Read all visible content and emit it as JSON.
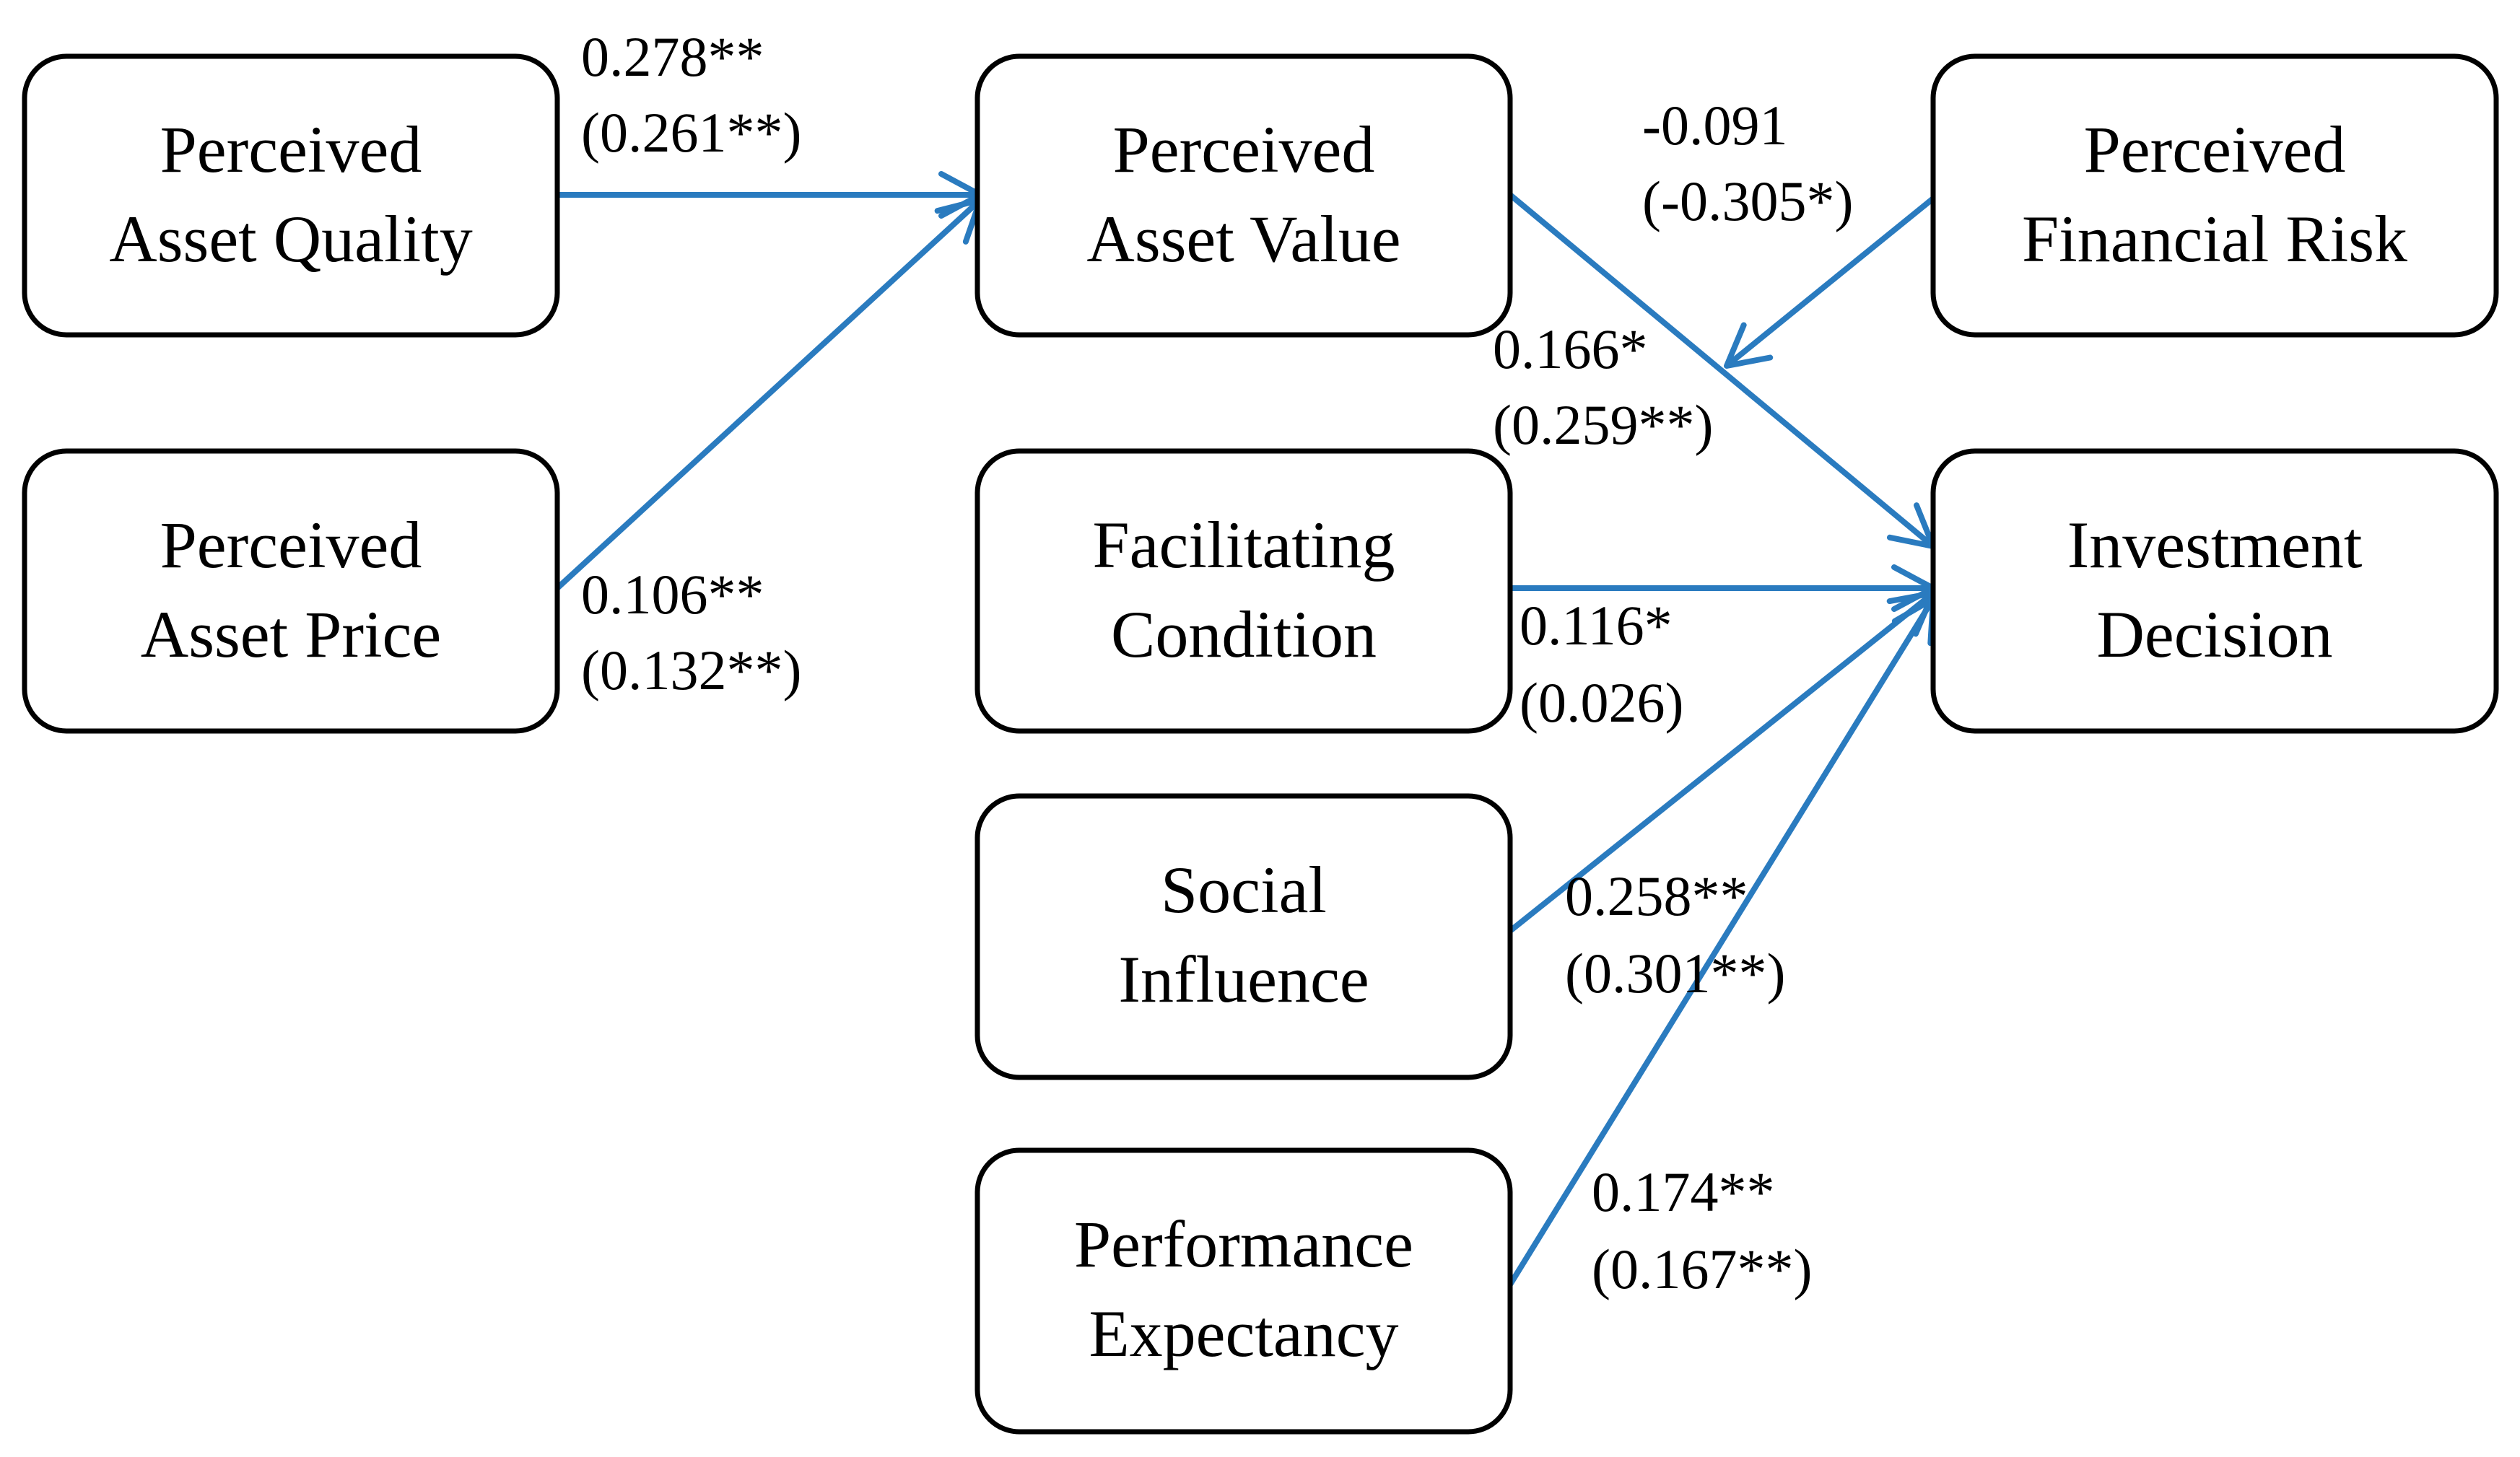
{
  "colors": {
    "arrow": "#2a7bbf",
    "box_border": "#000000",
    "text": "#000000",
    "background": "#ffffff"
  },
  "nodes": {
    "perceived_asset_quality": {
      "line1": "Perceived",
      "line2": "Asset Quality"
    },
    "perceived_asset_price": {
      "line1": "Perceived",
      "line2": "Asset Price"
    },
    "perceived_asset_value": {
      "line1": "Perceived",
      "line2": "Asset Value"
    },
    "facilitating_condition": {
      "line1": "Facilitating",
      "line2": "Condition"
    },
    "social_influence": {
      "line1": "Social",
      "line2": "Influence"
    },
    "performance_expectancy": {
      "line1": "Performance",
      "line2": "Expectancy"
    },
    "perceived_financial_risk": {
      "line1": "Perceived",
      "line2": "Financial Risk"
    },
    "investment_decision": {
      "line1": "Investment",
      "line2": "Decision"
    }
  },
  "paths": [
    {
      "from": "perceived_asset_quality",
      "to": "perceived_asset_value",
      "coef": "0.278**",
      "coef_alt": "(0.261**)"
    },
    {
      "from": "perceived_asset_price",
      "to": "perceived_asset_value",
      "coef": "0.106**",
      "coef_alt": "(0.132**)"
    },
    {
      "from": "perceived_financial_risk",
      "to": "path_value_decision",
      "coef": "-0.091",
      "coef_alt": "(-0.305*)"
    },
    {
      "from": "perceived_asset_value",
      "to": "investment_decision",
      "coef": "0.166*",
      "coef_alt": "(0.259**)"
    },
    {
      "from": "facilitating_condition",
      "to": "investment_decision",
      "coef": "0.116*",
      "coef_alt": "(0.026)"
    },
    {
      "from": "social_influence",
      "to": "investment_decision",
      "coef": "0.258**",
      "coef_alt": "(0.301**)"
    },
    {
      "from": "performance_expectancy",
      "to": "investment_decision",
      "coef": "0.174**",
      "coef_alt": "(0.167**)"
    }
  ]
}
